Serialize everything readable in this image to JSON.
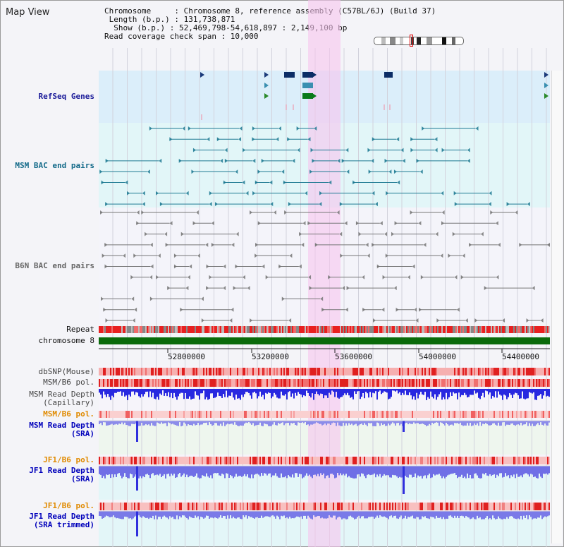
{
  "header": {
    "title": "Map View",
    "info_lines": [
      "Chromosome     : Chromosome 8, reference assembly (C57BL/6J) (Build 37)",
      " Length (b.p.) : 131,738,871",
      "  Show (b.p.) : 52,469,798-54,618,897 : 2,149,100 bp",
      "Read coverage check span : 10,000"
    ]
  },
  "tracks": {
    "refseq": {
      "label": "RefSeq Genes",
      "color": "#1a1a99"
    },
    "msm_bac": {
      "label": "MSM BAC end pairs",
      "color": "#156b8a"
    },
    "b6n_bac": {
      "label": "B6N BAC end pairs",
      "color": "#666666"
    },
    "repeat": {
      "label": "Repeat"
    },
    "chromosome": {
      "label": "chromosome 8"
    },
    "dbsnp": {
      "label": "dbSNP(Mouse)"
    },
    "msm_b6_pol": {
      "label": "MSM/B6 pol."
    },
    "msm_depth_cap": {
      "label_1": "MSM Read Depth",
      "label_2": "(Capillary)"
    },
    "msm_b6_pol2": {
      "label": "MSM/B6 pol.",
      "color": "#e08a00"
    },
    "msm_depth_sra": {
      "label_1": "MSM Read Depth",
      "label_2": "(SRA)",
      "color": "#0000bb"
    },
    "jf1_b6_pol": {
      "label": "JF1/B6 pol.",
      "color": "#e08a00"
    },
    "jf1_depth_sra": {
      "label_1": "JF1 Read Depth",
      "label_2": "(SRA)",
      "color": "#0000bb"
    },
    "jf1_b6_pol2": {
      "label": "JF1/B6 pol.",
      "color": "#e08a00"
    },
    "jf1_depth_trim": {
      "label_1": "JF1 Read Depth",
      "label_2": "(SRA trimmed)",
      "color": "#0000bb"
    }
  },
  "scale": {
    "ticks": [
      "52800000",
      "53200000",
      "53600000",
      "54000000",
      "54400000"
    ]
  }
}
